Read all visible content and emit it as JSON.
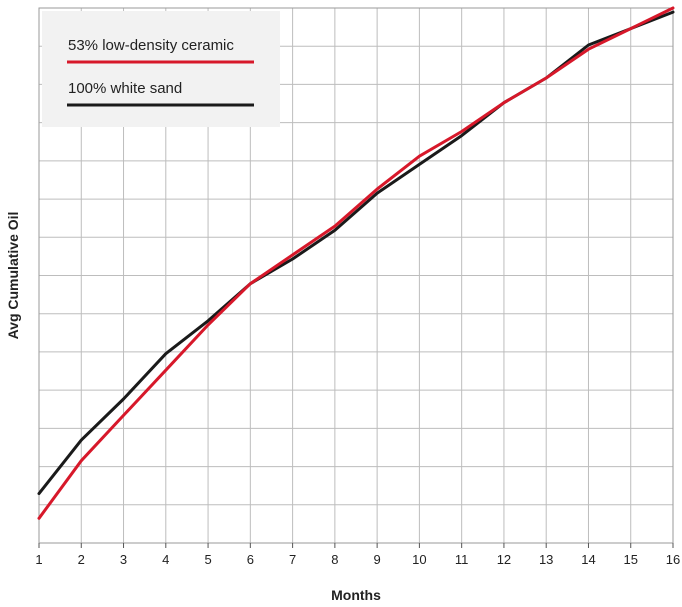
{
  "chart_data": {
    "type": "line",
    "xlabel": "Months",
    "ylabel": "Avg Cumulative Oil",
    "x": [
      1,
      2,
      3,
      4,
      5,
      6,
      7,
      8,
      9,
      10,
      11,
      12,
      13,
      14,
      15,
      16
    ],
    "xlim": [
      1,
      16
    ],
    "ylim": [
      0,
      13
    ],
    "y_tick_labels_shown": false,
    "grid": true,
    "legend_position": "top-left",
    "series": [
      {
        "name": "53% low-density ceramic",
        "color": "#d7182a",
        "values": [
          0.6,
          2.0,
          3.1,
          4.2,
          5.3,
          6.3,
          7.0,
          7.7,
          8.6,
          9.4,
          10.0,
          10.7,
          11.3,
          12.0,
          12.5,
          13.0
        ]
      },
      {
        "name": "100% white sand",
        "color": "#1a1a1a",
        "values": [
          1.2,
          2.5,
          3.5,
          4.6,
          5.4,
          6.3,
          6.9,
          7.6,
          8.5,
          9.2,
          9.9,
          10.7,
          11.3,
          12.1,
          12.5,
          12.9
        ]
      }
    ]
  }
}
